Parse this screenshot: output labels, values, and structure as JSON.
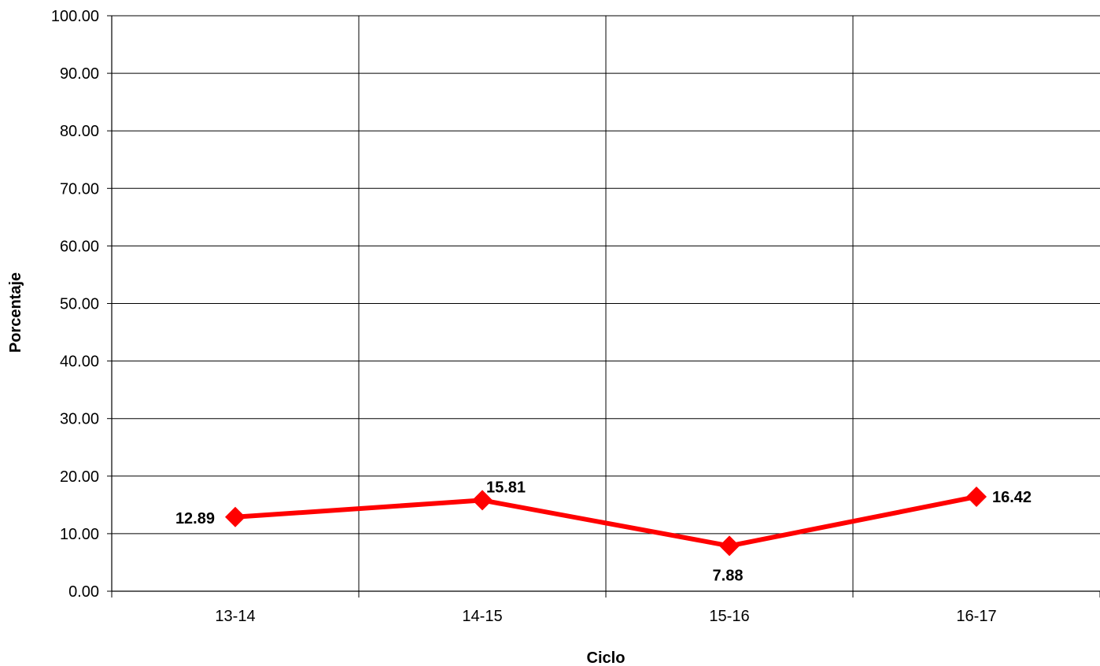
{
  "chart_data": {
    "type": "line",
    "title": "",
    "xlabel": "Ciclo",
    "ylabel": "Porcentaje",
    "categories": [
      "13-14",
      "14-15",
      "15-16",
      "16-17"
    ],
    "series": [
      {
        "values": [
          12.89,
          15.81,
          7.88,
          16.42
        ],
        "color": "#ff0000",
        "marker": "diamond"
      }
    ],
    "data_labels": [
      "12.89",
      "15.81",
      "7.88",
      "16.42"
    ],
    "ylim": [
      0,
      100
    ],
    "y_ticks": [
      "0.00",
      "10.00",
      "20.00",
      "30.00",
      "40.00",
      "50.00",
      "60.00",
      "70.00",
      "80.00",
      "90.00",
      "100.00"
    ],
    "grid": true,
    "legend": "none"
  }
}
